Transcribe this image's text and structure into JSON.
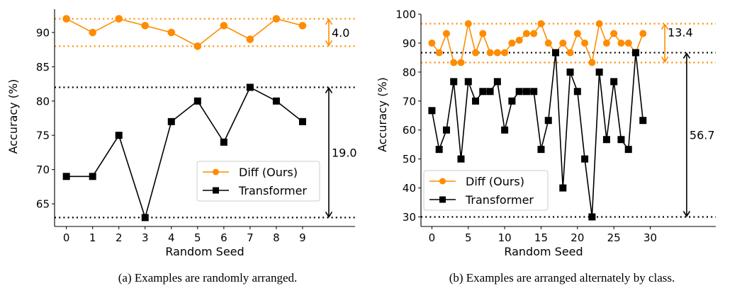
{
  "colors": {
    "diff": "#ff8c00",
    "transformer": "#000000",
    "legend_border": "#cccccc",
    "axis": "#000000"
  },
  "chart_data": [
    {
      "type": "line",
      "id": "a",
      "caption": "(a) Examples are randomly arranged.",
      "xlabel": "Random Seed",
      "ylabel": "Accuracy (%)",
      "x": [
        0,
        1,
        2,
        3,
        4,
        5,
        6,
        7,
        8,
        9
      ],
      "xticks": [
        "0",
        "1",
        "2",
        "3",
        "4",
        "5",
        "6",
        "7",
        "8",
        "9"
      ],
      "xtick_values": [
        0,
        1,
        2,
        3,
        4,
        5,
        6,
        7,
        8,
        9
      ],
      "yticks": [
        "65",
        "70",
        "75",
        "80",
        "85",
        "90"
      ],
      "ytick_values": [
        65,
        70,
        75,
        80,
        85,
        90
      ],
      "xlim": [
        -0.45,
        11.0
      ],
      "ylim": [
        61.7,
        93.4
      ],
      "grid": false,
      "legend": {
        "placement": "lower-right",
        "entries": [
          "Diff (Ours)",
          "Transformer"
        ]
      },
      "series": [
        {
          "name": "Diff (Ours)",
          "marker": "circle",
          "color_key": "diff",
          "values": [
            92,
            90,
            92,
            91,
            90,
            88,
            91,
            89,
            92,
            91
          ]
        },
        {
          "name": "Transformer",
          "marker": "square",
          "color_key": "transformer",
          "values": [
            69,
            69,
            75,
            63,
            77,
            80,
            74,
            82,
            80,
            77
          ]
        }
      ],
      "reference_lines": [
        {
          "y": 92,
          "color_key": "diff"
        },
        {
          "y": 88,
          "color_key": "diff"
        },
        {
          "y": 82,
          "color_key": "transformer"
        },
        {
          "y": 63,
          "color_key": "transformer"
        }
      ],
      "range_annotations": [
        {
          "label": "4.0",
          "x": 10.0,
          "y_from": 88,
          "y_to": 92,
          "color_key": "diff",
          "label_pos": "middle"
        },
        {
          "label": "19.0",
          "x": 10.0,
          "y_from": 63,
          "y_to": 82,
          "color_key": "transformer",
          "label_pos": "middle"
        }
      ]
    },
    {
      "type": "line",
      "id": "b",
      "caption": "(b) Examples are arranged alternately by class.",
      "xlabel": "Random Seed",
      "ylabel": "Accuracy (%)",
      "x": [
        0,
        1,
        2,
        3,
        4,
        5,
        6,
        7,
        8,
        9,
        10,
        11,
        12,
        13,
        14,
        15,
        16,
        17,
        18,
        19,
        20,
        21,
        22,
        23,
        24,
        25,
        26,
        27,
        28,
        29
      ],
      "xticks": [
        "0",
        "5",
        "10",
        "15",
        "20",
        "25",
        "30"
      ],
      "xtick_values": [
        0,
        5,
        10,
        15,
        20,
        25,
        30
      ],
      "yticks": [
        "30",
        "40",
        "50",
        "60",
        "70",
        "80",
        "90",
        "100"
      ],
      "ytick_values": [
        30,
        40,
        50,
        60,
        70,
        80,
        90,
        100
      ],
      "xlim": [
        -1.5,
        39.0
      ],
      "ylim": [
        26.7,
        100.0
      ],
      "grid": false,
      "legend": {
        "placement": "lower-left",
        "entries": [
          "Diff (Ours)",
          "Transformer"
        ]
      },
      "series": [
        {
          "name": "Diff (Ours)",
          "marker": "circle",
          "color_key": "diff",
          "values": [
            90,
            86.7,
            93.3,
            83.3,
            83.3,
            96.7,
            86.7,
            93.3,
            86.7,
            86.7,
            86.7,
            90,
            91,
            93.3,
            93.3,
            96.7,
            90,
            86.7,
            90,
            86.7,
            93.3,
            90,
            83.3,
            96.7,
            90,
            93.3,
            90,
            90,
            86.7,
            93.3
          ]
        },
        {
          "name": "Transformer",
          "marker": "square",
          "color_key": "transformer",
          "values": [
            66.7,
            53.3,
            60,
            76.7,
            50,
            76.7,
            70,
            73.3,
            73.3,
            76.7,
            60,
            70,
            73.3,
            73.3,
            73.3,
            53.3,
            63.3,
            86.7,
            40,
            80,
            73.3,
            50,
            30,
            80,
            56.7,
            76.7,
            56.7,
            53.3,
            86.7,
            63.3
          ]
        }
      ],
      "reference_lines": [
        {
          "y": 96.7,
          "color_key": "diff"
        },
        {
          "y": 83.3,
          "color_key": "diff"
        },
        {
          "y": 86.7,
          "color_key": "transformer"
        },
        {
          "y": 30,
          "color_key": "transformer"
        }
      ],
      "range_annotations": [
        {
          "label": "13.4",
          "x": 32.0,
          "y_from": 83.3,
          "y_to": 96.7,
          "color_key": "diff",
          "label_pos": "upper"
        },
        {
          "label": "56.7",
          "x": 35.0,
          "y_from": 30,
          "y_to": 86.7,
          "color_key": "transformer",
          "label_pos": "middle"
        }
      ]
    }
  ]
}
